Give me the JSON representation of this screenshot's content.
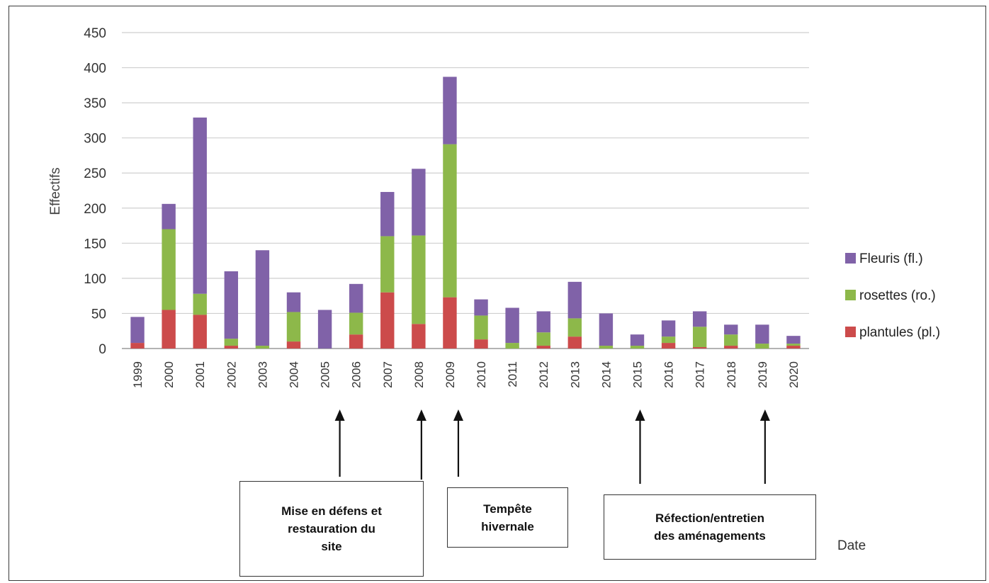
{
  "chart_data": {
    "type": "bar",
    "stacked": true,
    "ylabel": "Effectifs",
    "xlabel": "Date",
    "ylim": [
      0,
      450
    ],
    "yticks": [
      0,
      50,
      100,
      150,
      200,
      250,
      300,
      350,
      400,
      450
    ],
    "grid": true,
    "legend_position": "right",
    "categories": [
      "1999",
      "2000",
      "2001",
      "2002",
      "2003",
      "2004",
      "2005",
      "2006",
      "2007",
      "2008",
      "2009",
      "2010",
      "2011",
      "2012",
      "2013",
      "2014",
      "2015",
      "2016",
      "2017",
      "2018",
      "2019",
      "2020"
    ],
    "series": [
      {
        "name": "plantules (pl.)",
        "color": "#cc4b4b",
        "values": [
          8,
          55,
          48,
          4,
          0,
          10,
          0,
          20,
          80,
          35,
          73,
          13,
          0,
          4,
          17,
          0,
          0,
          8,
          2,
          4,
          0,
          4
        ]
      },
      {
        "name": "rosettes (ro.)",
        "color": "#8db84a",
        "values": [
          0,
          115,
          30,
          10,
          4,
          42,
          0,
          31,
          80,
          126,
          218,
          34,
          8,
          19,
          26,
          4,
          4,
          9,
          29,
          16,
          7,
          3
        ]
      },
      {
        "name": "Fleuris (fl.)",
        "color": "#8062a8",
        "values": [
          37,
          36,
          251,
          96,
          136,
          28,
          55,
          41,
          63,
          95,
          96,
          23,
          50,
          30,
          52,
          46,
          16,
          23,
          22,
          14,
          27,
          11
        ]
      }
    ],
    "annotations": [
      {
        "text": "Mise en défens et\nrestauration du\nsite",
        "arrows_at": [
          "2005",
          "2008"
        ]
      },
      {
        "text": "Tempête\nhivernale",
        "arrows_at": [
          "2009"
        ]
      },
      {
        "text": "Réfection/entretien\ndes aménagements",
        "arrows_at": [
          "2015",
          "2019"
        ]
      }
    ]
  }
}
